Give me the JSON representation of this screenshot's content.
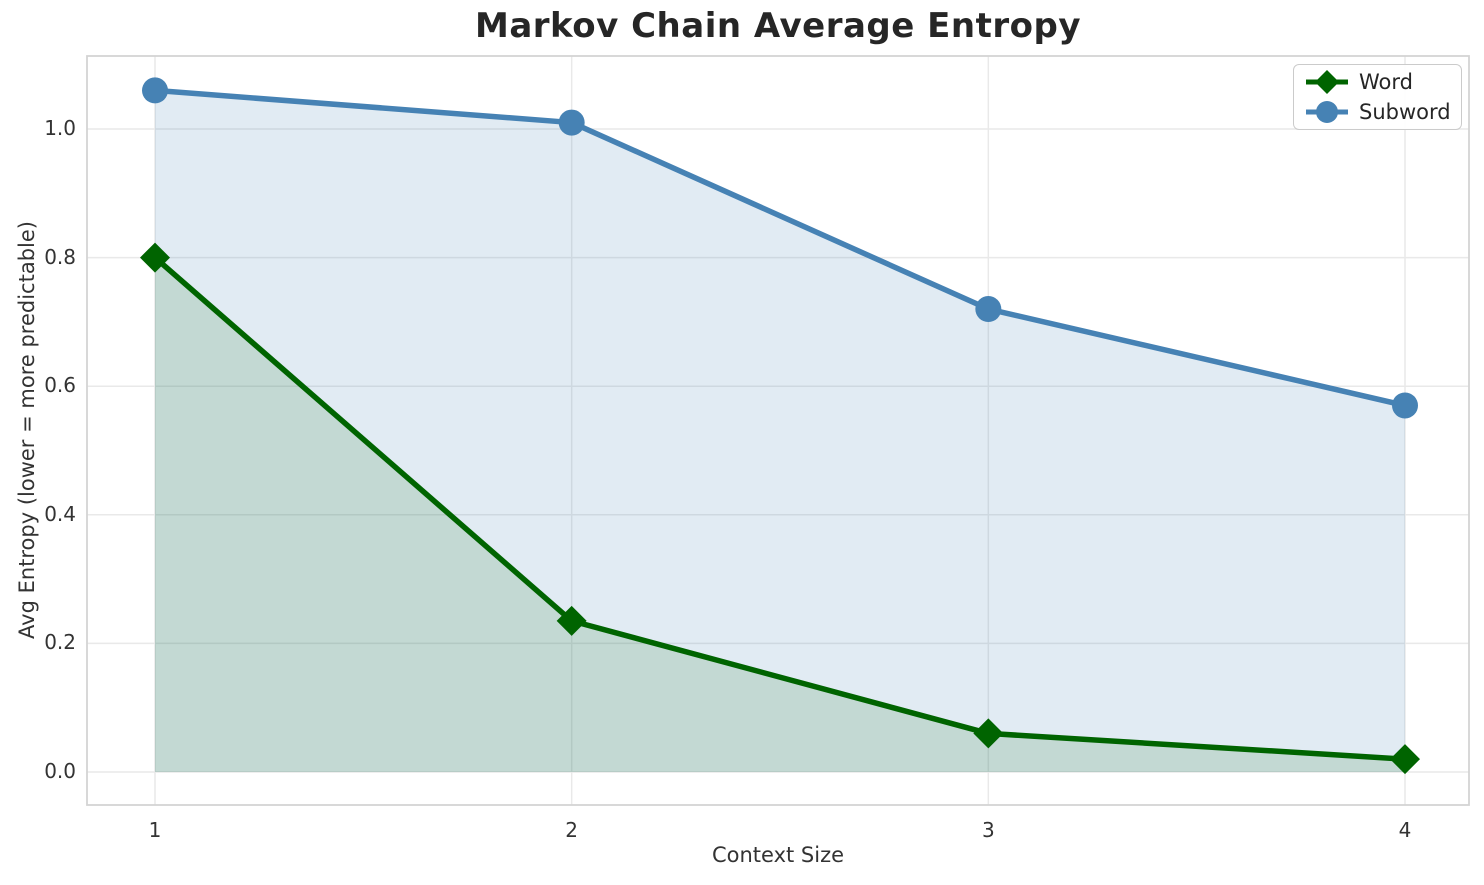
{
  "figure": {
    "title": "Markov Chain Average Entropy"
  },
  "chart_data": {
    "type": "line",
    "title": "Markov Chain Average Entropy",
    "xlabel": "Context Size",
    "ylabel": "Avg Entropy (lower = more predictable)",
    "x": [
      1,
      2,
      3,
      4
    ],
    "series": [
      {
        "name": "Word",
        "values": [
          0.8,
          0.235,
          0.06,
          0.02
        ],
        "color": "#006400",
        "marker": "diamond",
        "fill_opacity": 0.13
      },
      {
        "name": "Subword",
        "values": [
          1.06,
          1.01,
          0.72,
          0.57
        ],
        "color": "#4682B4",
        "marker": "circle",
        "fill_opacity": 0.16
      }
    ],
    "area_fill_to_zero": true,
    "xticks": {
      "values": [
        1,
        2,
        3,
        4
      ],
      "labels": [
        "1",
        "2",
        "3",
        "4"
      ]
    },
    "yticks": {
      "values": [
        0.0,
        0.2,
        0.4,
        0.6,
        0.8,
        1.0
      ],
      "labels": [
        "0.0",
        "0.2",
        "0.4",
        "0.6",
        "0.8",
        "1.0"
      ]
    },
    "xlim": [
      0.85,
      4.16
    ],
    "ylim": [
      -0.05,
      1.11
    ],
    "grid": true,
    "grid_color": "#e9e9e9",
    "spine_color": "#d4d4d4",
    "legend": {
      "position": "upper right",
      "items": [
        "Word",
        "Subword"
      ]
    }
  }
}
